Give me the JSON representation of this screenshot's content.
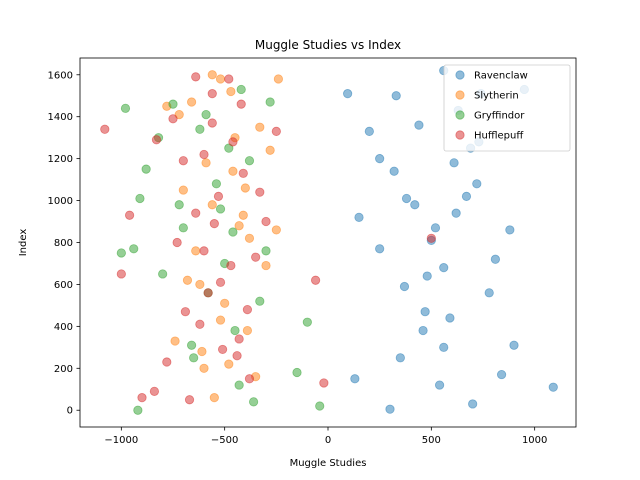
{
  "chart_data": {
    "type": "scatter",
    "title": "Muggle Studies vs Index",
    "xlabel": "Muggle Studies",
    "ylabel": "Index",
    "xlim": [
      -1200,
      1200
    ],
    "ylim": [
      -80,
      1680
    ],
    "xticks": [
      -1000,
      -500,
      0,
      500,
      1000
    ],
    "yticks": [
      0,
      200,
      400,
      600,
      800,
      1000,
      1200,
      1400,
      1600
    ],
    "grid": false,
    "legend_position": "top-right",
    "marker_alpha": 0.5,
    "series": [
      {
        "name": "Ravenclaw",
        "color": "#1f77b4",
        "points": [
          [
            300,
            5
          ],
          [
            1090,
            110
          ],
          [
            500,
            810
          ],
          [
            560,
            1620
          ],
          [
            380,
            1010
          ],
          [
            620,
            940
          ],
          [
            95,
            1510
          ],
          [
            900,
            310
          ],
          [
            740,
            1510
          ],
          [
            460,
            380
          ],
          [
            330,
            1500
          ],
          [
            690,
            1250
          ],
          [
            250,
            1200
          ],
          [
            480,
            640
          ],
          [
            880,
            860
          ],
          [
            150,
            920
          ],
          [
            540,
            120
          ],
          [
            590,
            440
          ],
          [
            720,
            1080
          ],
          [
            440,
            1360
          ],
          [
            350,
            250
          ],
          [
            780,
            560
          ],
          [
            200,
            1330
          ],
          [
            630,
            1430
          ],
          [
            810,
            720
          ],
          [
            420,
            980
          ],
          [
            560,
            300
          ],
          [
            700,
            30
          ],
          [
            130,
            150
          ],
          [
            610,
            1180
          ],
          [
            520,
            870
          ],
          [
            950,
            1530
          ],
          [
            370,
            590
          ],
          [
            840,
            170
          ],
          [
            250,
            770
          ],
          [
            670,
            1020
          ],
          [
            470,
            470
          ],
          [
            730,
            1280
          ],
          [
            320,
            1140
          ],
          [
            560,
            680
          ]
        ]
      },
      {
        "name": "Slytherin",
        "color": "#ff7f0e",
        "points": [
          [
            -560,
            1600
          ],
          [
            -620,
            600
          ],
          [
            -480,
            220
          ],
          [
            -450,
            1300
          ],
          [
            -700,
            1050
          ],
          [
            -380,
            820
          ],
          [
            -240,
            1580
          ],
          [
            -520,
            430
          ],
          [
            -660,
            1470
          ],
          [
            -410,
            930
          ],
          [
            -350,
            160
          ],
          [
            -590,
            1180
          ],
          [
            -300,
            690
          ],
          [
            -740,
            330
          ],
          [
            -470,
            1520
          ],
          [
            -550,
            60
          ],
          [
            -400,
            1060
          ],
          [
            -640,
            760
          ],
          [
            -280,
            1240
          ],
          [
            -500,
            510
          ],
          [
            -720,
            1410
          ],
          [
            -430,
            880
          ],
          [
            -610,
            280
          ],
          [
            -330,
            1350
          ],
          [
            -560,
            980
          ],
          [
            -680,
            620
          ],
          [
            -460,
            1140
          ],
          [
            -390,
            380
          ],
          [
            -520,
            1580
          ],
          [
            -250,
            860
          ],
          [
            -780,
            1450
          ],
          [
            -600,
            200
          ]
        ]
      },
      {
        "name": "Gryffindor",
        "color": "#2ca02c",
        "points": [
          [
            -1000,
            750
          ],
          [
            -940,
            770
          ],
          [
            -980,
            1440
          ],
          [
            -910,
            1010
          ],
          [
            -880,
            1150
          ],
          [
            -920,
            0
          ],
          [
            -150,
            180
          ],
          [
            -100,
            420
          ],
          [
            -40,
            20
          ],
          [
            -750,
            1460
          ],
          [
            -520,
            960
          ],
          [
            -420,
            1530
          ],
          [
            -300,
            760
          ],
          [
            -650,
            250
          ],
          [
            -480,
            1250
          ],
          [
            -580,
            560
          ],
          [
            -700,
            870
          ],
          [
            -360,
            40
          ],
          [
            -620,
            1340
          ],
          [
            -450,
            380
          ],
          [
            -540,
            1080
          ],
          [
            -280,
            1470
          ],
          [
            -800,
            650
          ],
          [
            -660,
            310
          ],
          [
            -380,
            1190
          ],
          [
            -500,
            700
          ],
          [
            -720,
            980
          ],
          [
            -430,
            120
          ],
          [
            -590,
            1410
          ],
          [
            -330,
            520
          ],
          [
            -820,
            1300
          ],
          [
            -460,
            850
          ]
        ]
      },
      {
        "name": "Hufflepuff",
        "color": "#d62728",
        "points": [
          [
            -1080,
            1340
          ],
          [
            -1000,
            650
          ],
          [
            -960,
            930
          ],
          [
            -840,
            90
          ],
          [
            -830,
            1290
          ],
          [
            -900,
            60
          ],
          [
            -60,
            620
          ],
          [
            -20,
            130
          ],
          [
            500,
            820
          ],
          [
            -600,
            1220
          ],
          [
            -780,
            230
          ],
          [
            -550,
            890
          ],
          [
            -420,
            1460
          ],
          [
            -690,
            470
          ],
          [
            -330,
            1040
          ],
          [
            -510,
            290
          ],
          [
            -640,
            1590
          ],
          [
            -470,
            690
          ],
          [
            -380,
            150
          ],
          [
            -560,
            1370
          ],
          [
            -730,
            800
          ],
          [
            -410,
            1130
          ],
          [
            -620,
            410
          ],
          [
            -300,
            900
          ],
          [
            -480,
            1580
          ],
          [
            -580,
            560
          ],
          [
            -700,
            1190
          ],
          [
            -440,
            260
          ],
          [
            -530,
            1020
          ],
          [
            -350,
            730
          ],
          [
            -670,
            50
          ],
          [
            -460,
            1280
          ],
          [
            -600,
            760
          ],
          [
            -390,
            480
          ],
          [
            -750,
            1390
          ],
          [
            -520,
            610
          ],
          [
            -250,
            1330
          ],
          [
            -640,
            940
          ],
          [
            -430,
            340
          ],
          [
            -560,
            1510
          ]
        ]
      }
    ]
  }
}
